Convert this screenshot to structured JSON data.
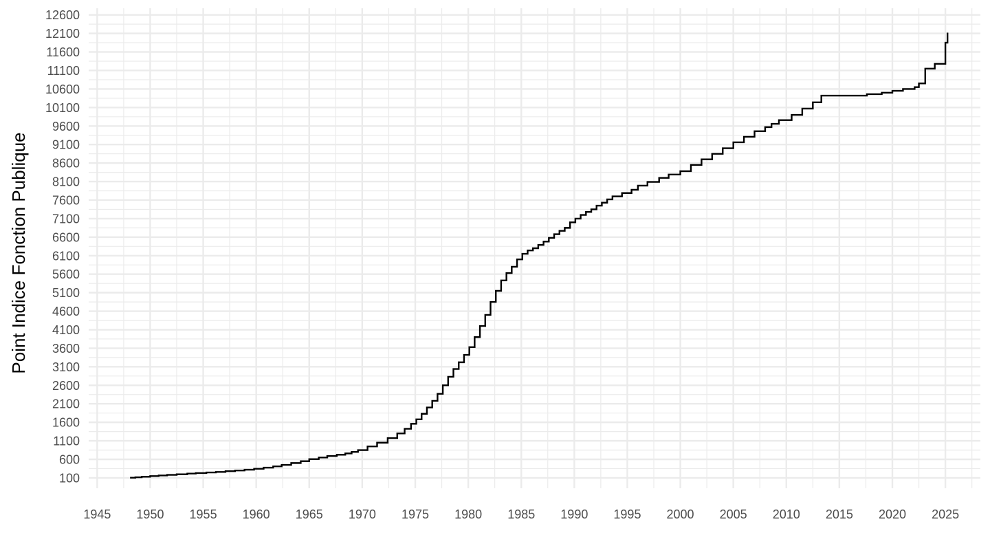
{
  "chart_data": {
    "type": "line",
    "step": true,
    "title": "",
    "xlabel": "",
    "ylabel": "Point Indice Fonction Publique",
    "xlim": [
      1944.2,
      2028.3
    ],
    "ylim": [
      -180,
      12780
    ],
    "x_ticks": [
      1945,
      1950,
      1955,
      1960,
      1965,
      1970,
      1975,
      1980,
      1985,
      1990,
      1995,
      2000,
      2005,
      2010,
      2015,
      2020,
      2025
    ],
    "y_ticks": [
      100,
      600,
      1100,
      1600,
      2100,
      2600,
      3100,
      3600,
      4100,
      4600,
      5100,
      5600,
      6100,
      6600,
      7100,
      7600,
      8100,
      8600,
      9100,
      9600,
      10100,
      10600,
      11100,
      11600,
      12100,
      12600
    ],
    "grid": true,
    "legend": "none",
    "line_color": "#000000",
    "grid_color": "#ebebeb",
    "series": [
      {
        "x": [
          1948.1,
          1948.6,
          1949.2,
          1950.0,
          1950.8,
          1951.6,
          1952.5,
          1953.5,
          1954.3,
          1955.3,
          1956.2,
          1957.1,
          1958.0,
          1958.9,
          1959.8,
          1960.7,
          1961.6,
          1962.4,
          1963.3,
          1964.2,
          1965.0,
          1965.9,
          1966.7,
          1967.6,
          1968.4,
          1969.0,
          1969.6,
          1970.5,
          1971.4,
          1972.4,
          1973.3,
          1974.0,
          1974.6,
          1975.1,
          1975.6,
          1976.1,
          1976.6,
          1977.1,
          1977.6,
          1978.1,
          1978.6,
          1979.1,
          1979.6,
          1980.1,
          1980.6,
          1981.1,
          1981.6,
          1982.1,
          1982.6,
          1983.1,
          1983.6,
          1984.1,
          1984.6,
          1985.1,
          1985.6,
          1986.1,
          1986.6,
          1987.1,
          1987.6,
          1988.1,
          1988.6,
          1989.1,
          1989.6,
          1990.1,
          1990.6,
          1991.1,
          1991.6,
          1992.1,
          1992.6,
          1993.1,
          1993.6,
          1994.5,
          1995.4,
          1996.0,
          1996.9,
          1998.0,
          1998.9,
          2000.0,
          2001.0,
          2002.0,
          2003.0,
          2004.0,
          2005.0,
          2006.0,
          2007.0,
          2008.0,
          2008.6,
          2009.3,
          2010.5,
          2011.5,
          2012.5,
          2013.3,
          2017.6,
          2019.0,
          2020.0,
          2021.0,
          2022.1,
          2022.5,
          2023.1,
          2024.0,
          2025.0,
          2025.2
        ],
        "y": [
          105,
          115,
          130,
          148,
          165,
          180,
          198,
          215,
          230,
          245,
          260,
          280,
          300,
          320,
          345,
          375,
          410,
          450,
          500,
          550,
          605,
          650,
          690,
          725,
          760,
          800,
          850,
          950,
          1050,
          1175,
          1300,
          1425,
          1560,
          1680,
          1830,
          2000,
          2180,
          2370,
          2600,
          2830,
          3040,
          3220,
          3420,
          3630,
          3900,
          4200,
          4500,
          4850,
          5150,
          5430,
          5630,
          5800,
          6000,
          6150,
          6240,
          6300,
          6390,
          6480,
          6580,
          6680,
          6770,
          6850,
          7000,
          7100,
          7200,
          7280,
          7350,
          7450,
          7530,
          7620,
          7700,
          7790,
          7880,
          7990,
          8090,
          8200,
          8290,
          8380,
          8550,
          8700,
          8850,
          9000,
          9160,
          9310,
          9460,
          9570,
          9660,
          9760,
          9900,
          10070,
          10240,
          10420,
          10460,
          10500,
          10550,
          10600,
          10650,
          10750,
          11150,
          11280,
          11850,
          12120
        ]
      }
    ]
  }
}
